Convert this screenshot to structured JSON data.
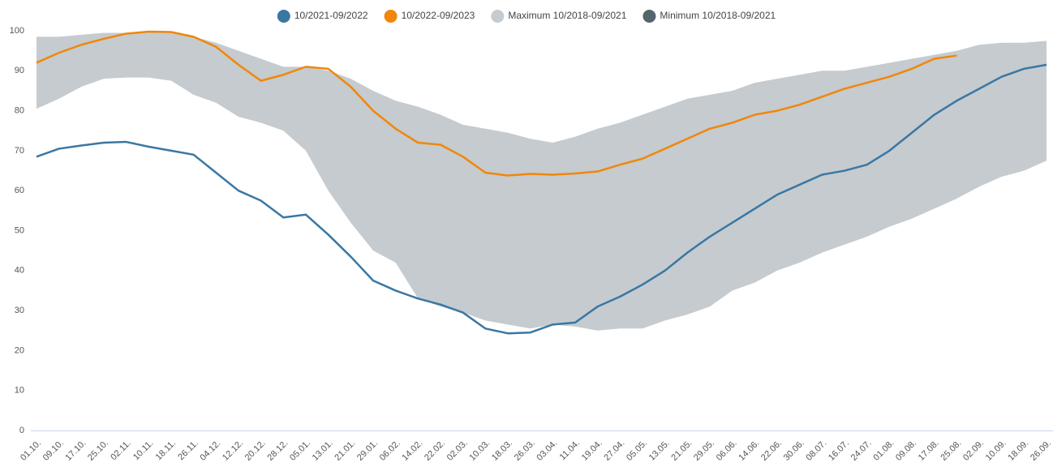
{
  "chart_data": {
    "type": "line",
    "categories": [
      "01.10.",
      "09.10.",
      "17.10.",
      "25.10.",
      "02.11.",
      "10.11.",
      "18.11.",
      "26.11.",
      "04.12.",
      "12.12.",
      "20.12.",
      "28.12.",
      "05.01.",
      "13.01.",
      "21.01.",
      "29.01.",
      "06.02.",
      "14.02.",
      "22.02.",
      "02.03.",
      "10.03.",
      "18.03.",
      "26.03.",
      "03.04.",
      "11.04.",
      "19.04.",
      "27.04.",
      "05.05.",
      "13.05.",
      "21.05.",
      "29.05.",
      "06.06.",
      "14.06.",
      "22.06.",
      "30.06.",
      "08.07.",
      "16.07.",
      "24.07.",
      "01.08.",
      "09.08.",
      "17.08.",
      "25.08.",
      "02.09.",
      "10.09.",
      "18.09.",
      "26.09."
    ],
    "series": [
      {
        "name": "10/2021-09/2022",
        "color": "#3a77a3",
        "style": "line",
        "values": [
          68.5,
          70.5,
          71.3,
          72,
          72.2,
          71,
          70,
          69,
          64.5,
          60,
          57.5,
          53.3,
          54,
          49,
          43.5,
          37.5,
          35,
          33,
          31.5,
          29.5,
          25.5,
          24.3,
          24.5,
          26.5,
          27,
          31,
          33.5,
          36.5,
          40,
          44.5,
          48.5,
          52,
          55.5,
          59,
          61.5,
          64,
          65,
          66.5,
          70,
          74.5,
          79,
          82.5,
          85.5,
          88.5,
          90.5,
          91.5
        ]
      },
      {
        "name": "10/2022-09/2023",
        "color": "#f0870a",
        "style": "line",
        "values": [
          92,
          94.5,
          96.5,
          98,
          99.3,
          99.8,
          99.7,
          98.5,
          96,
          91.5,
          87.5,
          89,
          91,
          90.5,
          86,
          80,
          75.5,
          72,
          71.5,
          68.5,
          64.5,
          63.8,
          64.2,
          64,
          64.3,
          64.8,
          66.5,
          68,
          70.5,
          73,
          75.5,
          77,
          79,
          80,
          81.5,
          83.5,
          85.5,
          87,
          88.5,
          90.5,
          93,
          93.8,
          null,
          null,
          null,
          null
        ]
      },
      {
        "name": "Maximum 10/2018-09/2021",
        "color": "#c5cbcf",
        "style": "band-max",
        "values": [
          98.5,
          98.5,
          99,
          99.5,
          99.5,
          99.8,
          99.5,
          98.5,
          97,
          95,
          93,
          91,
          91,
          90,
          88,
          85,
          82.5,
          81,
          79,
          76.5,
          75.5,
          74.5,
          73,
          72,
          73.5,
          75.5,
          77,
          79,
          81,
          83,
          84,
          85,
          87,
          88,
          89,
          90,
          90,
          91,
          92,
          93,
          94,
          95,
          96.5,
          97,
          97,
          97.5
        ]
      },
      {
        "name": "Minimum 10/2018-09/2021",
        "color": "#56646b",
        "style": "band-min",
        "values": [
          80.5,
          83,
          86,
          88,
          88.3,
          88.3,
          87.5,
          84,
          82,
          78.5,
          77,
          75,
          70,
          60,
          52,
          45,
          42,
          33,
          31,
          29.5,
          27.5,
          26.5,
          25.5,
          26.5,
          26,
          25,
          25.5,
          25.5,
          27.5,
          29,
          31,
          35,
          37,
          40,
          42,
          44.5,
          46.5,
          48.5,
          51,
          53,
          55.5,
          58,
          61,
          63.5,
          65,
          67.5
        ]
      }
    ],
    "ylim": [
      0,
      100
    ],
    "yticks": [
      0,
      10,
      20,
      30,
      40,
      50,
      60,
      70,
      80,
      90,
      100
    ],
    "grid": false
  }
}
